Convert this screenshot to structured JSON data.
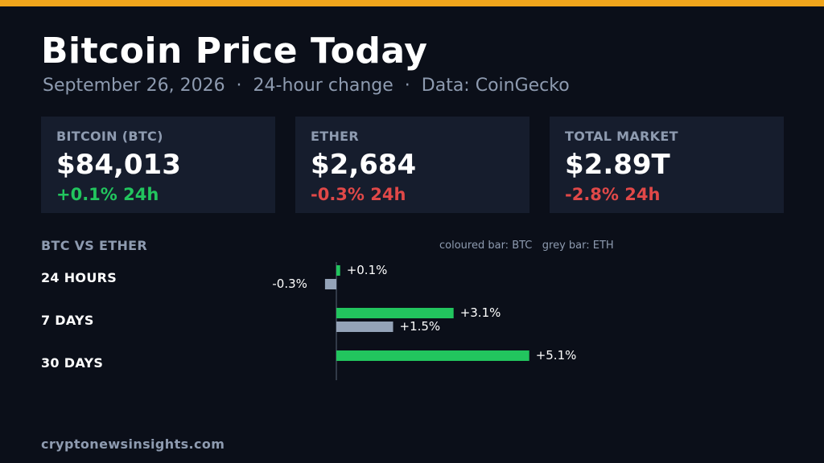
{
  "header": {
    "title": "Bitcoin Price Today",
    "subtitle": "September 26, 2026  ·  24-hour change  ·  Data: CoinGecko"
  },
  "cards": [
    {
      "label": "BITCOIN (BTC)",
      "value": "$84,013",
      "change": "+0.1% 24h",
      "direction": "up"
    },
    {
      "label": "ETHER",
      "value": "$2,684",
      "change": "-0.3% 24h",
      "direction": "down"
    },
    {
      "label": "TOTAL MARKET",
      "value": "$2.89T",
      "change": "-2.8% 24h",
      "direction": "down"
    }
  ],
  "colors": {
    "accent_top": "#f0a51c",
    "positive": "#22c55e",
    "negative": "#e04848",
    "btc_bar": "#22c55e",
    "eth_bar": "#94a3b8",
    "background": "#0b0f19",
    "card": "#161d2d"
  },
  "chart_data": {
    "type": "bar",
    "title": "BTC VS ETHER",
    "legend": "coloured bar: BTC   grey bar: ETH",
    "categories": [
      "24 HOURS",
      "7 DAYS",
      "30 DAYS"
    ],
    "series": [
      {
        "values": [
          0.1,
          3.1,
          5.1
        ],
        "labels": [
          "+0.1%",
          "+3.1%",
          "+5.1%"
        ]
      },
      {
        "values": [
          -0.3,
          1.5,
          null
        ],
        "labels": [
          "-0.3%",
          "+1.5%",
          ""
        ]
      }
    ]
  },
  "footer": {
    "site": "cryptonewsinsights.com"
  }
}
